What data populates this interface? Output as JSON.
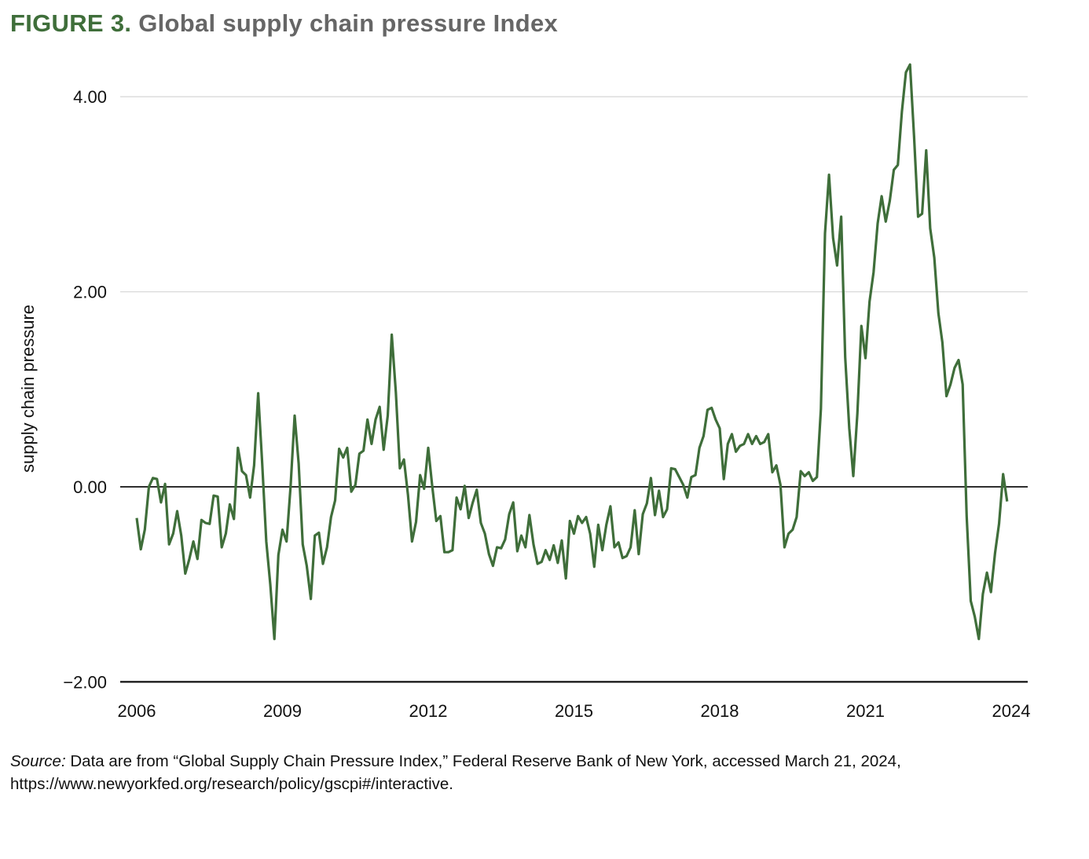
{
  "title": {
    "figure_label": "FIGURE 3.",
    "text": "Global supply chain pressure Index"
  },
  "source": {
    "label": "Source:",
    "text": "Data are from “Global Supply Chain Pressure Index,” Federal Reserve Bank of New York, accessed March 21, 2024, https://www.newyorkfed.org/research/policy/gscpi#/interactive."
  },
  "colors": {
    "line": "#3f6e3a",
    "title_accent": "#3f6e3a",
    "title_text": "#666666",
    "grid": "#d9d9d9",
    "axis": "#111111"
  },
  "chart_data": {
    "type": "line",
    "title": "Global supply chain pressure Index",
    "xlabel": "",
    "ylabel": "supply chain pressure",
    "xlim": [
      2006,
      2024
    ],
    "ylim": [
      -2,
      4.4
    ],
    "x_ticks": [
      "2006",
      "2009",
      "2012",
      "2015",
      "2018",
      "2021",
      "2024"
    ],
    "y_ticks": [
      "4.00",
      "2.00",
      "0.00",
      "−2.00"
    ],
    "y_tick_values": [
      4,
      2,
      0,
      -2
    ],
    "grid": "horizontal",
    "frequency": "monthly",
    "monthly_values_by_year": {
      "2006": [
        -0.32,
        -0.64,
        -0.44,
        0.0,
        0.09,
        0.08,
        -0.16,
        0.03,
        -0.59,
        -0.48,
        -0.25,
        -0.5
      ],
      "2007": [
        -0.89,
        -0.74,
        -0.56,
        -0.74,
        -0.34,
        -0.37,
        -0.38,
        -0.09,
        -0.1,
        -0.62,
        -0.48,
        -0.18
      ],
      "2008": [
        -0.33,
        0.4,
        0.16,
        0.12,
        -0.11,
        0.22,
        0.96,
        0.24,
        -0.56,
        -1.0,
        -1.56,
        -0.7
      ],
      "2009": [
        -0.44,
        -0.56,
        0.0,
        0.73,
        0.24,
        -0.59,
        -0.81,
        -1.15,
        -0.5,
        -0.47,
        -0.79,
        -0.62
      ],
      "2010": [
        -0.31,
        -0.14,
        0.39,
        0.3,
        0.4,
        -0.05,
        0.02,
        0.34,
        0.37,
        0.69,
        0.44,
        0.69
      ],
      "2011": [
        0.82,
        0.38,
        0.73,
        1.56,
        0.97,
        0.19,
        0.28,
        -0.08,
        -0.56,
        -0.36,
        0.12,
        -0.02
      ],
      "2012": [
        0.4,
        0.0,
        -0.35,
        -0.3,
        -0.67,
        -0.67,
        -0.65,
        -0.11,
        -0.23,
        0.01,
        -0.32,
        -0.16
      ],
      "2013": [
        -0.03,
        -0.37,
        -0.48,
        -0.69,
        -0.81,
        -0.62,
        -0.63,
        -0.54,
        -0.28,
        -0.16,
        -0.66,
        -0.5
      ],
      "2014": [
        -0.62,
        -0.29,
        -0.59,
        -0.79,
        -0.77,
        -0.65,
        -0.75,
        -0.6,
        -0.78,
        -0.55,
        -0.94,
        -0.35
      ],
      "2015": [
        -0.48,
        -0.3,
        -0.37,
        -0.31,
        -0.48,
        -0.82,
        -0.39,
        -0.65,
        -0.39,
        -0.2,
        -0.62,
        -0.57
      ],
      "2016": [
        -0.73,
        -0.71,
        -0.62,
        -0.24,
        -0.69,
        -0.28,
        -0.17,
        0.09,
        -0.29,
        -0.04,
        -0.31,
        -0.23
      ],
      "2017": [
        0.19,
        0.18,
        0.1,
        0.02,
        -0.11,
        0.1,
        0.12,
        0.4,
        0.52,
        0.79,
        0.81,
        0.69
      ],
      "2018": [
        0.6,
        0.08,
        0.44,
        0.54,
        0.36,
        0.42,
        0.44,
        0.54,
        0.44,
        0.52,
        0.44,
        0.46
      ],
      "2019": [
        0.54,
        0.15,
        0.22,
        0.02,
        -0.62,
        -0.48,
        -0.44,
        -0.31,
        0.16,
        0.11,
        0.15,
        0.06
      ],
      "2020": [
        0.1,
        0.8,
        2.6,
        3.2,
        2.55,
        2.27,
        2.77,
        1.33,
        0.6,
        0.11,
        0.75,
        1.65
      ],
      "2021": [
        1.32,
        1.9,
        2.2,
        2.7,
        2.98,
        2.72,
        2.93,
        3.25,
        3.3,
        3.85,
        4.25,
        4.33
      ],
      "2022": [
        3.6,
        2.77,
        2.8,
        3.45,
        2.65,
        2.35,
        1.78,
        1.48,
        0.93,
        1.05,
        1.22,
        1.3
      ],
      "2023": [
        1.05,
        -0.3,
        -1.17,
        -1.33,
        -1.56,
        -1.1,
        -0.88,
        -1.08,
        -0.68,
        -0.38,
        0.13,
        -0.15
      ]
    }
  }
}
